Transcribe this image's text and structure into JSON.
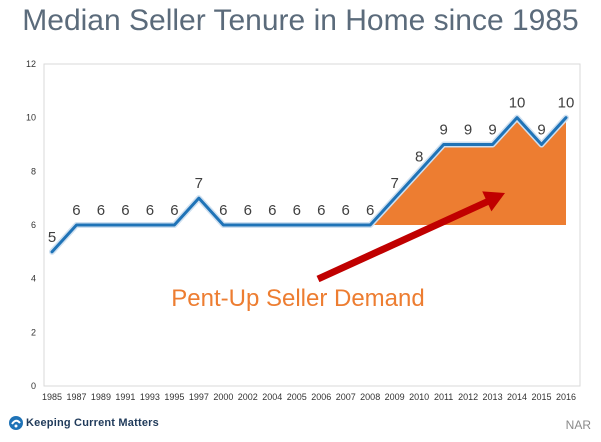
{
  "chart_data": {
    "type": "line",
    "title": "Median Seller Tenure in Home since 1985",
    "xlabel": "",
    "ylabel": "",
    "ylim": [
      0,
      12
    ],
    "yticks": [
      0,
      2,
      4,
      6,
      8,
      10,
      12
    ],
    "grid": false,
    "categories": [
      "1985",
      "1987",
      "1989",
      "1991",
      "1993",
      "1995",
      "1997",
      "2000",
      "2002",
      "2004",
      "2005",
      "2006",
      "2007",
      "2008",
      "2009",
      "2010",
      "2011",
      "2012",
      "2013",
      "2014",
      "2015",
      "2016"
    ],
    "series": [
      {
        "values": [
          5,
          6,
          6,
          6,
          6,
          6,
          7,
          6,
          6,
          6,
          6,
          6,
          6,
          6,
          7,
          8,
          9,
          9,
          9,
          10,
          9,
          10
        ]
      }
    ],
    "annotation": {
      "text": "Pent-Up Seller Demand",
      "shaded_region_from": "2008",
      "shaded_region_to": "2016",
      "shaded_region_baseline": 6
    },
    "colors": {
      "line": "#1f73b7",
      "line_outline": "#cfe0f0",
      "fill": "#ed7d31",
      "arrow": "#c00000",
      "annotation_text": "#ed7d31",
      "axis_text": "#333333",
      "data_label": "#404040"
    }
  },
  "footer": {
    "brand": "Keeping Current Matters",
    "source": "NAR"
  },
  "icons": {
    "brand_logo": "kcm-logo-icon"
  }
}
